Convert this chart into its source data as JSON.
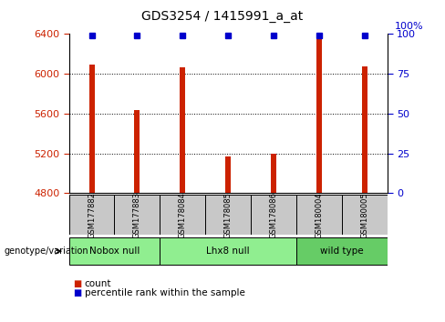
{
  "title": "GDS3254 / 1415991_a_at",
  "samples": [
    "GSM177882",
    "GSM177883",
    "GSM178084",
    "GSM178085",
    "GSM178086",
    "GSM180004",
    "GSM180005"
  ],
  "counts": [
    6090,
    5630,
    6060,
    5170,
    5200,
    6350,
    6070
  ],
  "percentile_ranks": [
    99,
    99,
    99,
    99,
    99,
    99,
    99
  ],
  "ylim_left": [
    4800,
    6400
  ],
  "ylim_right": [
    0,
    100
  ],
  "yticks_left": [
    4800,
    5200,
    5600,
    6000,
    6400
  ],
  "yticks_right": [
    0,
    25,
    50,
    75,
    100
  ],
  "groups": [
    {
      "label": "Nobox null",
      "start": 0,
      "end": 2,
      "color": "#90EE90"
    },
    {
      "label": "Lhx8 null",
      "start": 2,
      "end": 5,
      "color": "#90EE90"
    },
    {
      "label": "wild type",
      "start": 5,
      "end": 7,
      "color": "#66CC66"
    }
  ],
  "bar_color": "#CC2200",
  "percentile_color": "#0000CC",
  "bar_width": 0.12,
  "grid_color": "#000000",
  "tick_label_color_left": "#CC2200",
  "tick_label_color_right": "#0000CC",
  "legend_items": [
    {
      "label": "count",
      "color": "#CC2200"
    },
    {
      "label": "percentile rank within the sample",
      "color": "#0000CC"
    }
  ],
  "group_label": "genotype/variation",
  "bg_color": "#C8C8C8",
  "plot_bg": "#FFFFFF",
  "left_spine_color": "#000000",
  "bottom_spine_color": "#000000"
}
